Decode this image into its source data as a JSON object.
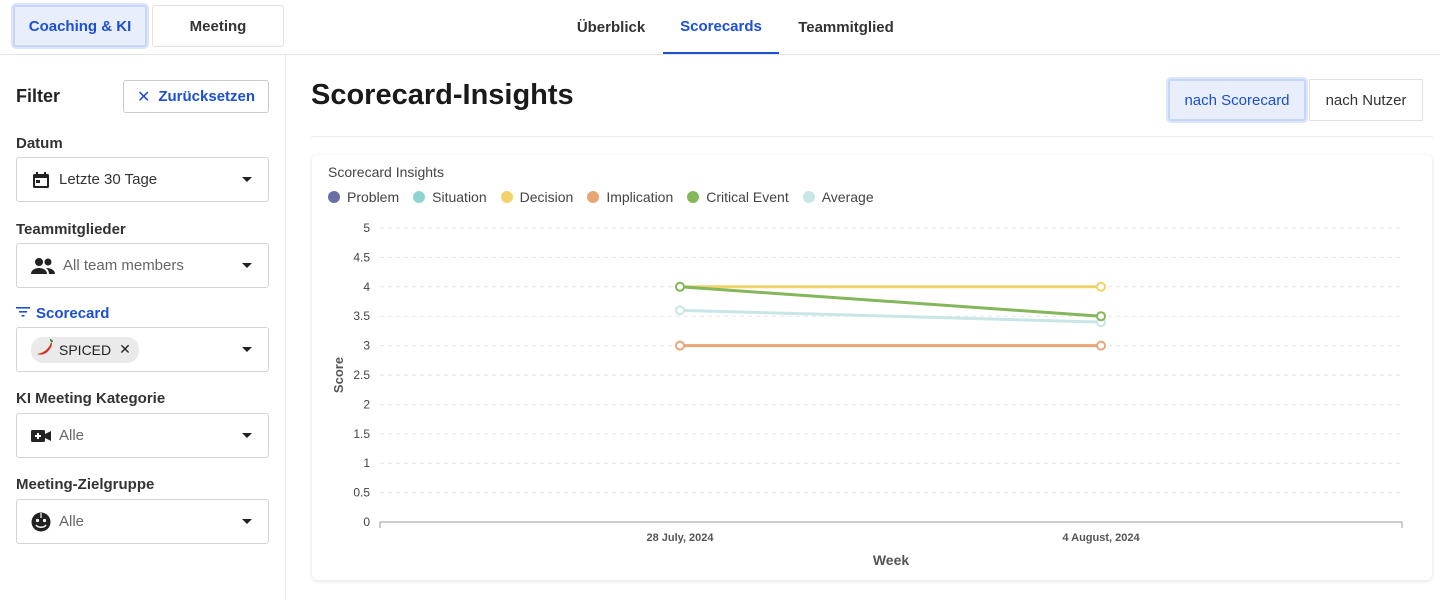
{
  "top": {
    "modes": [
      {
        "label": "Coaching & KI",
        "active": true
      },
      {
        "label": "Meeting",
        "active": false
      }
    ],
    "tabs": [
      {
        "label": "Überblick",
        "active": false
      },
      {
        "label": "Scorecards",
        "active": true
      },
      {
        "label": "Teammitglied",
        "active": false
      }
    ]
  },
  "sidebar": {
    "title": "Filter",
    "reset_label": "Zurücksetzen",
    "date": {
      "label": "Datum",
      "value": "Letzte 30 Tage",
      "icon": "calendar-icon"
    },
    "members": {
      "label": "Teammitglieder",
      "value": "All team members",
      "icon": "people-icon"
    },
    "scorecard": {
      "label": "Scorecard",
      "chip": "SPICED",
      "icon": "filter-icon"
    },
    "category": {
      "label": "KI Meeting Kategorie",
      "value": "Alle",
      "icon": "video-add-icon"
    },
    "audience": {
      "label": "Meeting-Zielgruppe",
      "value": "Alle",
      "icon": "face-icon"
    }
  },
  "main": {
    "title": "Scorecard-Insights",
    "views": [
      {
        "label": "nach Scorecard",
        "active": true
      },
      {
        "label": "nach Nutzer",
        "active": false
      }
    ]
  },
  "colors": {
    "accent": "#1b4fd6"
  },
  "chart_data": {
    "type": "line",
    "title": "Scorecard Insights",
    "xlabel": "Week",
    "ylabel": "Score",
    "categories": [
      "28 July, 2024",
      "4 August, 2024"
    ],
    "ylim": [
      0,
      5
    ],
    "yticks": [
      "0",
      "0.5",
      "1",
      "1.5",
      "2",
      "2.5",
      "3",
      "3.5",
      "4",
      "4.5",
      "5"
    ],
    "grid": true,
    "legend": "top-left",
    "series": [
      {
        "name": "Problem",
        "color": "#6a6fa8",
        "values": [
          null,
          null
        ]
      },
      {
        "name": "Situation",
        "color": "#8fd3d3",
        "values": [
          null,
          null
        ]
      },
      {
        "name": "Decision",
        "color": "#f0d36b",
        "values": [
          4,
          4
        ]
      },
      {
        "name": "Implication",
        "color": "#e8a575",
        "values": [
          3,
          3
        ]
      },
      {
        "name": "Critical Event",
        "color": "#84b65a",
        "values": [
          4,
          3.5
        ]
      },
      {
        "name": "Average",
        "color": "#c9e6e6",
        "values": [
          3.6,
          3.4
        ]
      }
    ]
  }
}
